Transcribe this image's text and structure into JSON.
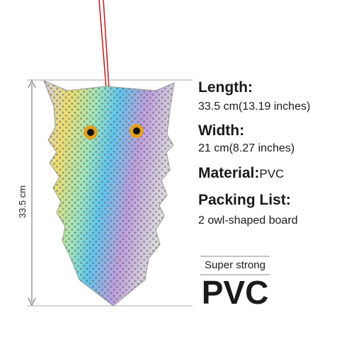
{
  "dimension_label": "33.5 cm",
  "specs": [
    {
      "label": "Length:",
      "value": "33.5 cm(13.19 inches)"
    },
    {
      "label": "Width:",
      "value": "21 cm(8.27 inches)"
    },
    {
      "label": "Material:",
      "value": "PVC"
    },
    {
      "label": "Packing List:",
      "value": "2 owl-shaped board"
    }
  ],
  "badge": {
    "caption": "Super strong",
    "text": "PVC"
  }
}
